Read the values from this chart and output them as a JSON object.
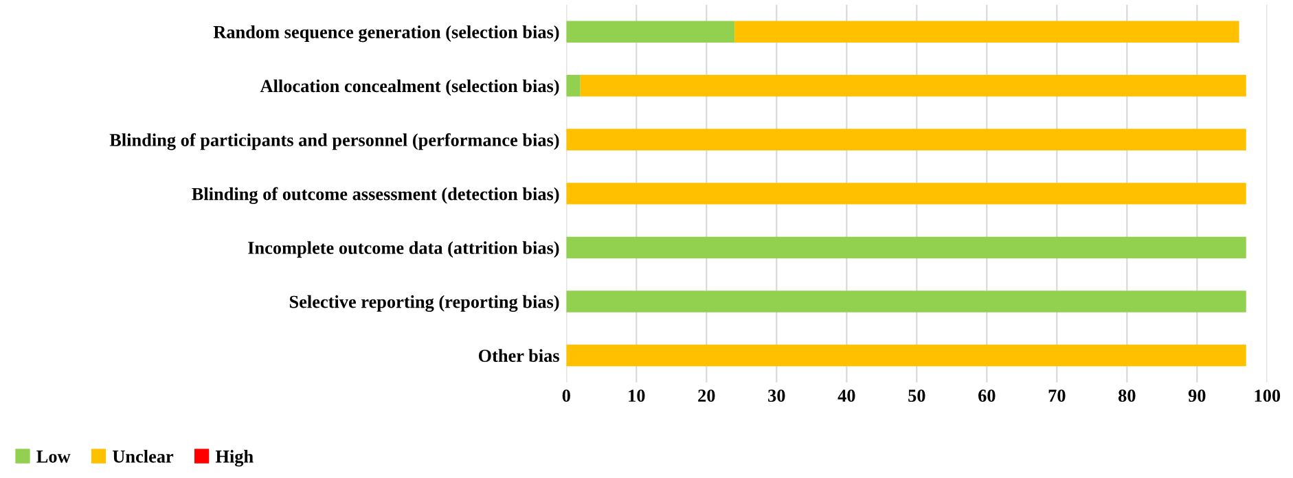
{
  "chart_data": {
    "type": "bar",
    "orientation": "horizontal",
    "stacked": true,
    "categories": [
      "Random sequence generation (selection bias)",
      "Allocation concealment (selection bias)",
      "Blinding of participants and personnel (performance bias)",
      "Blinding of outcome assessment (detection bias)",
      "Incomplete outcome data (attrition bias)",
      "Selective reporting (reporting bias)",
      "Other bias"
    ],
    "series": [
      {
        "name": "Low",
        "color": "#92d050",
        "values": [
          24,
          2,
          0,
          0,
          97,
          97,
          0
        ]
      },
      {
        "name": "Unclear",
        "color": "#ffc000",
        "values": [
          72,
          95,
          97,
          97,
          0,
          0,
          97
        ]
      },
      {
        "name": "High",
        "color": "#ff0000",
        "values": [
          0,
          0,
          0,
          0,
          0,
          0,
          0
        ]
      }
    ],
    "xlim": [
      0,
      100
    ],
    "xticks": [
      0,
      10,
      20,
      30,
      40,
      50,
      60,
      70,
      80,
      90,
      100
    ],
    "grid": "x",
    "legend": "bottom"
  }
}
